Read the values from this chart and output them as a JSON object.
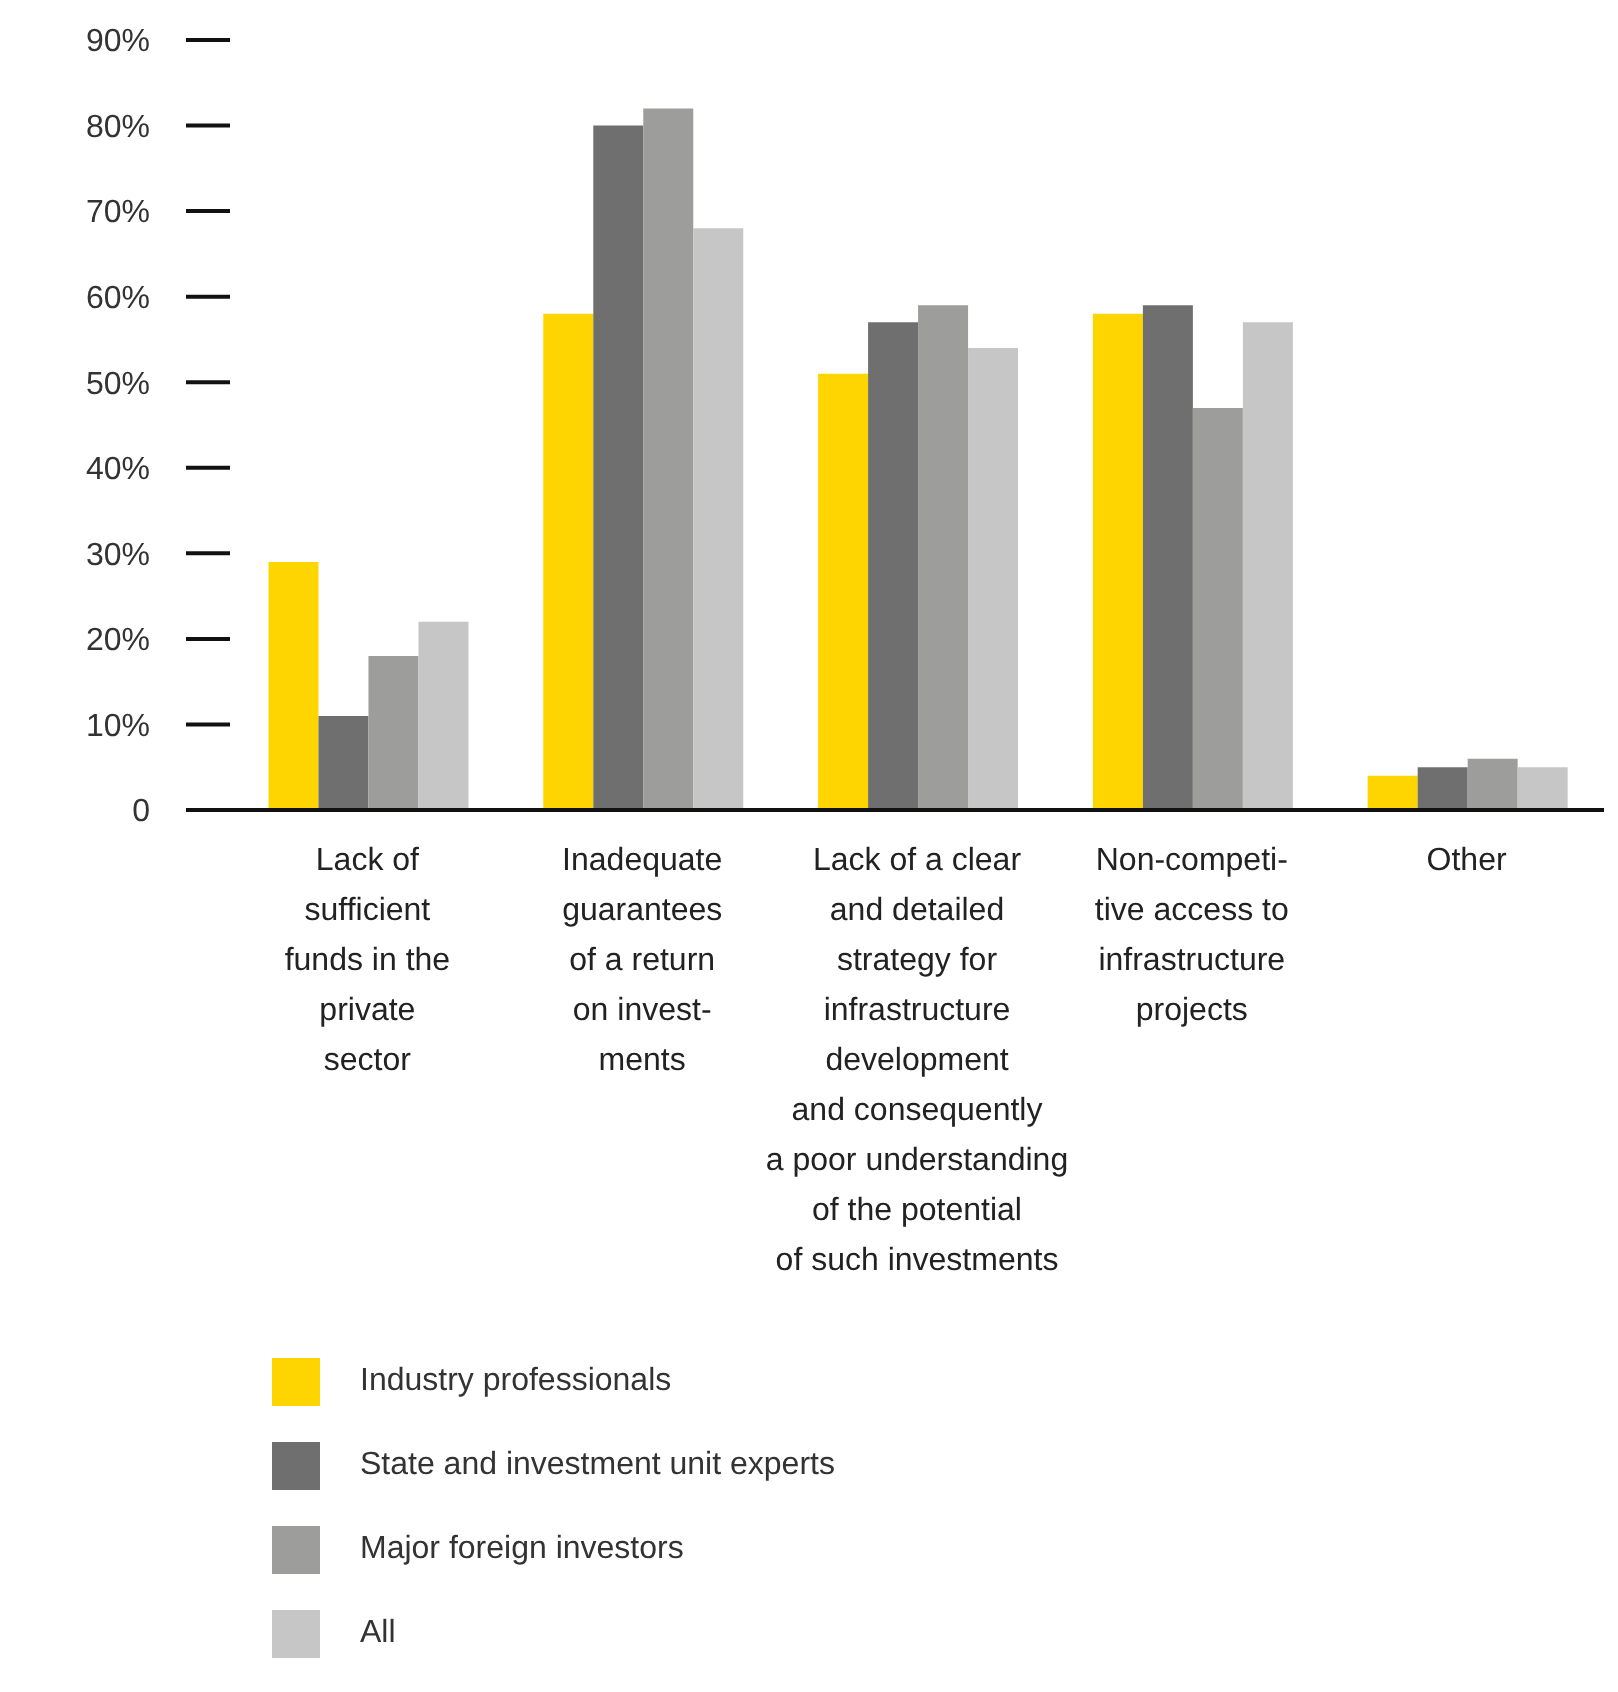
{
  "chart_data": {
    "type": "bar",
    "categories": [
      "Lack of\nsufficient\nfunds in the\nprivate\nsector",
      "Inadequate\nguarantees\nof a return\non invest-\nments",
      "Lack of a clear\nand detailed\nstrategy for\ninfrastructure\ndevelopment\nand consequently\na poor understanding\nof the potential\nof such investments",
      "Non-competi-\ntive access to\ninfrastructure\nprojects",
      "Other"
    ],
    "series": [
      {
        "name": "Industry professionals",
        "color": "#ffd500",
        "values": [
          29,
          58,
          51,
          58,
          4
        ]
      },
      {
        "name": "State and investment unit experts",
        "color": "#6f6f6f",
        "values": [
          11,
          80,
          57,
          59,
          5
        ]
      },
      {
        "name": "Major foreign investors",
        "color": "#9d9d9c",
        "values": [
          18,
          82,
          59,
          47,
          6
        ]
      },
      {
        "name": "All",
        "color": "#c6c6c6",
        "values": [
          22,
          68,
          54,
          57,
          5
        ]
      }
    ],
    "ylim": [
      0,
      90
    ],
    "yticks": [
      {
        "value": 0,
        "label": "0"
      },
      {
        "value": 10,
        "label": "10%"
      },
      {
        "value": 20,
        "label": "20%"
      },
      {
        "value": 30,
        "label": "30%"
      },
      {
        "value": 40,
        "label": "40%"
      },
      {
        "value": 50,
        "label": "50%"
      },
      {
        "value": 60,
        "label": "60%"
      },
      {
        "value": 70,
        "label": "70%"
      },
      {
        "value": 80,
        "label": "80%"
      },
      {
        "value": 90,
        "label": "90%"
      }
    ],
    "grid": false,
    "legend": "bottom"
  }
}
